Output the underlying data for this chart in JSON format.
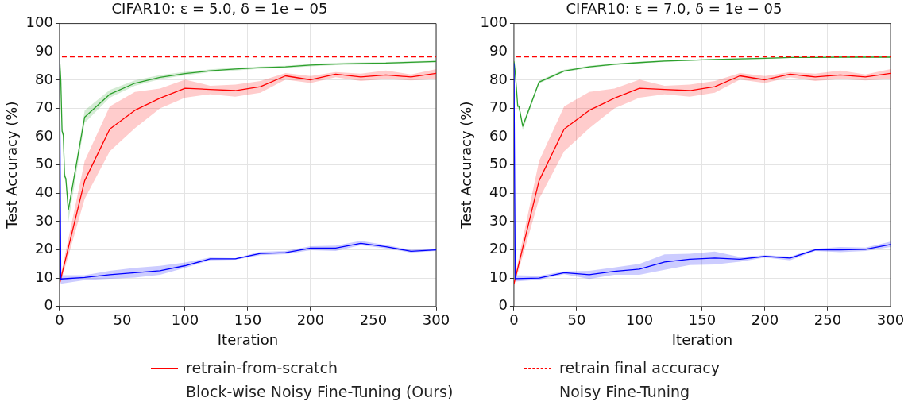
{
  "chart_data": [
    {
      "type": "line",
      "title": "CIFAR10: ε = 5.0, δ = 1e − 05",
      "xlabel": "Iteration",
      "ylabel": "Test Accuracy (%)",
      "xlim": [
        0,
        300
      ],
      "xticks": [
        0,
        50,
        100,
        150,
        200,
        250,
        300
      ],
      "ylim": [
        0,
        100
      ],
      "yticks": [
        0,
        10,
        20,
        30,
        40,
        50,
        60,
        70,
        80,
        90,
        100
      ],
      "grid": true,
      "legend": "bottom",
      "marker": "none",
      "series": [
        {
          "name": "retrain-from-scratch",
          "color": "#ff0000",
          "x": [
            0,
            20,
            40,
            60,
            80,
            100,
            120,
            140,
            160,
            180,
            200,
            220,
            240,
            260,
            280,
            300
          ],
          "values": [
            8,
            44.4,
            62.7,
            69.3,
            73.6,
            77.1,
            76.7,
            76.3,
            77.7,
            81.5,
            80.1,
            82.1,
            81.1,
            81.8,
            81.1,
            82.4
          ],
          "lower": [
            7,
            38,
            54.8,
            63,
            70,
            73.8,
            75,
            74.1,
            75.5,
            80.2,
            79,
            81,
            79.7,
            80.4,
            79.9,
            80.4
          ],
          "upper": [
            9,
            51.4,
            70.7,
            75.8,
            77,
            80.2,
            78,
            78.4,
            79.7,
            82.5,
            81.4,
            82.8,
            82.3,
            83.4,
            82,
            83.9
          ]
        },
        {
          "name": "Block-wise Noisy Fine-Tuning (Ours)",
          "color": "#2ca02c",
          "x": [
            0,
            1,
            2,
            3,
            4,
            5,
            7,
            20,
            40,
            60,
            80,
            100,
            120,
            140,
            160,
            180,
            200,
            220,
            240,
            260,
            280,
            300
          ],
          "values": [
            88,
            80,
            62,
            60.6,
            46.1,
            45.2,
            34.1,
            66.9,
            75,
            78.9,
            81,
            82.3,
            83.3,
            83.9,
            84.4,
            84.7,
            85.3,
            85.7,
            85.9,
            86,
            86.3,
            86.6
          ],
          "lower": [
            87,
            79,
            61,
            59.5,
            45,
            44,
            29.8,
            64.9,
            73.8,
            78,
            80.3,
            81.7,
            82.8,
            83.4,
            84,
            84.3,
            84.9,
            85.3,
            85.5,
            85.6,
            86,
            86.3
          ],
          "upper": [
            89,
            81,
            63,
            61.7,
            47.2,
            46.4,
            34.5,
            69.3,
            76.5,
            79.9,
            81.8,
            82.9,
            83.8,
            84.4,
            84.8,
            85.1,
            85.7,
            86.1,
            86.3,
            86.4,
            86.6,
            86.9
          ]
        },
        {
          "name": "Noisy Fine-Tuning",
          "color": "#0000ff",
          "x": [
            0,
            1,
            20,
            40,
            60,
            80,
            100,
            120,
            140,
            160,
            180,
            200,
            220,
            240,
            260,
            280,
            300
          ],
          "values": [
            87,
            9.7,
            10.2,
            11.2,
            11.9,
            12.6,
            14.4,
            16.8,
            16.8,
            18.7,
            19,
            20.6,
            20.6,
            22.3,
            21.1,
            19.5,
            20
          ],
          "lower": [
            86,
            8,
            9.3,
            9.8,
            10.2,
            11.2,
            13.6,
            16.3,
            16.5,
            18.1,
            18.5,
            19.9,
            19.6,
            21.6,
            20.5,
            19,
            19.6
          ],
          "upper": [
            88,
            11,
            11,
            12.6,
            13.6,
            14.3,
            15.5,
            17.3,
            17.1,
            19.3,
            19.6,
            21.3,
            21.5,
            23.2,
            21.7,
            20,
            20.4
          ]
        }
      ],
      "ref_lines": [
        {
          "axis": "y",
          "value": 88.2,
          "label": "retrain final accuracy",
          "color": "#ff0000",
          "line_style": "dashed"
        }
      ]
    },
    {
      "type": "line",
      "title": "CIFAR10: ε = 7.0, δ = 1e − 05",
      "xlabel": "Iteration",
      "ylabel": "Test Accuracy (%)",
      "xlim": [
        0,
        300
      ],
      "xticks": [
        0,
        50,
        100,
        150,
        200,
        250,
        300
      ],
      "ylim": [
        0,
        100
      ],
      "yticks": [
        0,
        10,
        20,
        30,
        40,
        50,
        60,
        70,
        80,
        90,
        100
      ],
      "grid": true,
      "marker": "none",
      "series": [
        {
          "color": "#ff0000",
          "x": [
            0,
            20,
            40,
            60,
            80,
            100,
            120,
            140,
            160,
            180,
            200,
            220,
            240,
            260,
            280,
            300
          ],
          "values": [
            8,
            44.4,
            62.7,
            69.3,
            73.6,
            77.1,
            76.7,
            76.3,
            77.7,
            81.5,
            80.1,
            82.1,
            81.1,
            81.8,
            81.1,
            82.4
          ],
          "lower": [
            7,
            38,
            54.8,
            63,
            70,
            73.8,
            75,
            74.1,
            75.5,
            80.2,
            79,
            81,
            79.7,
            80.4,
            79.9,
            80.4
          ],
          "upper": [
            9,
            51.4,
            70.7,
            75.8,
            77,
            80.2,
            78,
            78.4,
            79.7,
            82.5,
            81.4,
            82.8,
            82.3,
            83.4,
            82,
            83.9
          ]
        },
        {
          "color": "#2ca02c",
          "x": [
            0,
            1,
            2,
            3,
            4,
            7,
            20,
            40,
            60,
            80,
            100,
            120,
            140,
            160,
            180,
            200,
            220,
            240,
            260,
            280,
            300
          ],
          "values": [
            86.6,
            82.8,
            77,
            70.7,
            70.7,
            63.7,
            79.3,
            83.2,
            84.7,
            85.6,
            86.2,
            86.7,
            87,
            87.3,
            87.5,
            87.7,
            88,
            88,
            88.1,
            88.1,
            88.1
          ],
          "lower": [
            86,
            82,
            76,
            70,
            70,
            62.3,
            78.8,
            82.8,
            84.3,
            85.3,
            85.9,
            86.4,
            86.8,
            87.1,
            87.3,
            87.5,
            87.8,
            87.8,
            87.9,
            87.9,
            87.9
          ],
          "upper": [
            87.2,
            83.6,
            78,
            71.4,
            71.4,
            64.5,
            79.8,
            83.7,
            85.1,
            85.9,
            86.5,
            87,
            87.2,
            87.5,
            87.7,
            87.9,
            88.2,
            88.2,
            88.3,
            88.3,
            88.3
          ]
        },
        {
          "color": "#0000ff",
          "x": [
            0,
            1,
            20,
            40,
            60,
            80,
            100,
            120,
            140,
            160,
            180,
            200,
            220,
            240,
            260,
            280,
            300
          ],
          "values": [
            86,
            9.8,
            10,
            11.9,
            11.2,
            12.4,
            13.2,
            15.7,
            16.7,
            17.1,
            16.7,
            17.7,
            17.1,
            20,
            20,
            20.2,
            21.9
          ],
          "lower": [
            85,
            8.8,
            9.4,
            11.4,
            9.7,
            11.2,
            11.2,
            12.9,
            14.6,
            14.8,
            15.8,
            17.3,
            16.3,
            19.6,
            19.2,
            19.6,
            21
          ],
          "upper": [
            87,
            11,
            10.8,
            12.4,
            12.6,
            13.8,
            15,
            18.4,
            18.6,
            19.4,
            17.5,
            18.1,
            17.6,
            20.4,
            21,
            20.8,
            22.9
          ]
        }
      ],
      "ref_lines": [
        {
          "axis": "y",
          "value": 88.2,
          "color": "#ff0000",
          "line_style": "dashed"
        }
      ]
    }
  ]
}
